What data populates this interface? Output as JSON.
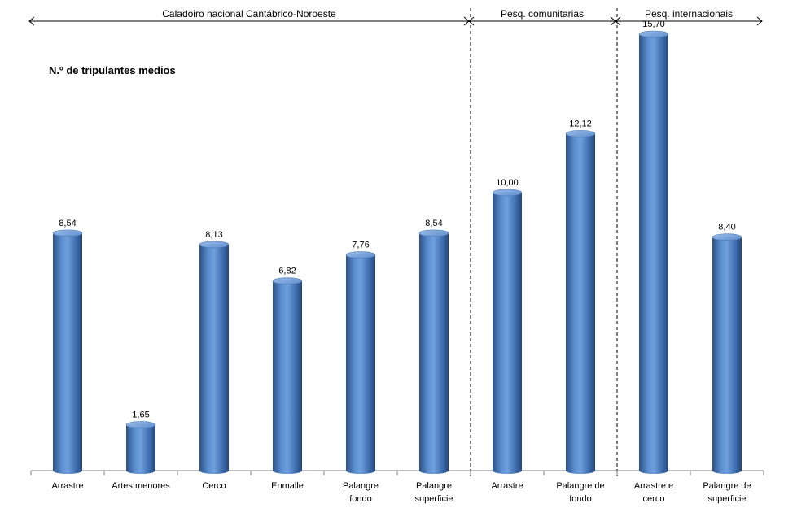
{
  "chart_data": {
    "type": "bar",
    "title": "N.º de tripulantes medios",
    "xlabel": "",
    "ylabel": "N.º de tripulantes medios",
    "ylim": [
      0,
      16
    ],
    "grid": false,
    "groups": [
      {
        "label": "Caladoiro nacional Cantábrico-Noroeste",
        "start": 0,
        "end": 5
      },
      {
        "label": "Pesq. comunitarias",
        "start": 6,
        "end": 7
      },
      {
        "label": "Pesq. internacionais",
        "start": 8,
        "end": 9
      }
    ],
    "categories": [
      [
        "Arrastre"
      ],
      [
        "Artes menores"
      ],
      [
        "Cerco"
      ],
      [
        "Enmalle"
      ],
      [
        "Palangre",
        "fondo"
      ],
      [
        "Palangre",
        "superficie"
      ],
      [
        "Arrastre"
      ],
      [
        "Palangre de",
        "fondo"
      ],
      [
        "Arrastre e",
        "cerco"
      ],
      [
        "Palangre de",
        "superficie"
      ]
    ],
    "values": [
      8.54,
      1.65,
      8.13,
      6.82,
      7.76,
      8.54,
      10.0,
      12.12,
      15.7,
      8.4
    ],
    "value_labels": [
      "8,54",
      "1,65",
      "8,13",
      "6,82",
      "7,76",
      "8,54",
      "10,00",
      "12,12",
      "15,70",
      "8,40"
    ],
    "colors": {
      "bar_light": "#8db3e2",
      "bar_mid": "#4f81bd",
      "bar_dark": "#2c5186",
      "axis": "#808080"
    }
  }
}
